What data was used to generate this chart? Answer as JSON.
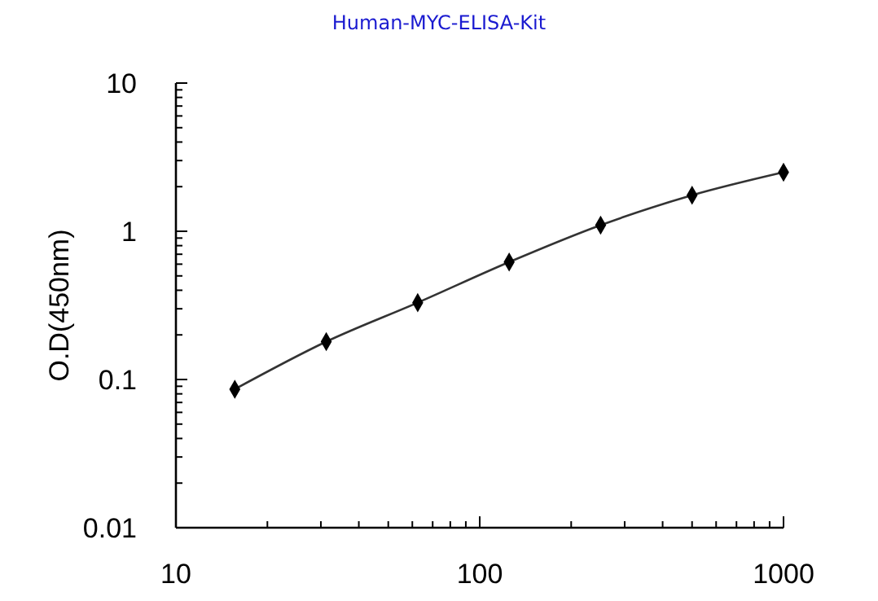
{
  "chart_data": {
    "type": "line",
    "title": "Human-MYC-ELISA-Kit",
    "ylabel": "O.D(450nm)",
    "log": "xy",
    "x": [
      15.625,
      31.25,
      62.5,
      125,
      250,
      500,
      1000
    ],
    "series": [
      {
        "color": "#333333",
        "values": [
          0.086,
          0.18,
          0.33,
          0.62,
          1.1,
          1.75,
          2.5
        ]
      }
    ],
    "xlim": [
      10,
      1000
    ],
    "ylim": [
      0.01,
      10
    ],
    "xticks": [
      10,
      {
        "value": 20,
        "label": null
      },
      {
        "value": 30,
        "label": null
      },
      {
        "value": 40,
        "label": null
      },
      {
        "value": 50,
        "label": null
      },
      {
        "value": 60,
        "label": null
      },
      {
        "value": 70,
        "label": null
      },
      {
        "value": 80,
        "label": null
      },
      {
        "value": 90,
        "label": null
      },
      100,
      {
        "value": 200,
        "label": null
      },
      {
        "value": 300,
        "label": null
      },
      {
        "value": 400,
        "label": null
      },
      {
        "value": 500,
        "label": null
      },
      {
        "value": 600,
        "label": null
      },
      {
        "value": 700,
        "label": null
      },
      {
        "value": 800,
        "label": null
      },
      {
        "value": 900,
        "label": null
      },
      1000
    ],
    "yticks": [
      0.01,
      {
        "value": 0.02,
        "label": null
      },
      {
        "value": 0.03,
        "label": null
      },
      {
        "value": 0.04,
        "label": null
      },
      {
        "value": 0.05,
        "label": null
      },
      {
        "value": 0.06,
        "label": null
      },
      {
        "value": 0.07,
        "label": null
      },
      {
        "value": 0.08,
        "label": null
      },
      {
        "value": 0.09,
        "label": null
      },
      0.1,
      {
        "value": 0.2,
        "label": null
      },
      {
        "value": 0.3,
        "label": null
      },
      {
        "value": 0.4,
        "label": null
      },
      {
        "value": 0.5,
        "label": null
      },
      {
        "value": 0.6,
        "label": null
      },
      {
        "value": 0.7,
        "label": null
      },
      {
        "value": 0.8,
        "label": null
      },
      {
        "value": 0.9,
        "label": null
      },
      1,
      {
        "value": 2,
        "label": null
      },
      {
        "value": 3,
        "label": null
      },
      {
        "value": 4,
        "label": null
      },
      {
        "value": 5,
        "label": null
      },
      {
        "value": 6,
        "label": null
      },
      {
        "value": 7,
        "label": null
      },
      {
        "value": 8,
        "label": null
      },
      {
        "value": 9,
        "label": null
      },
      10
    ],
    "marker": "diamond",
    "line_style": "solid"
  }
}
